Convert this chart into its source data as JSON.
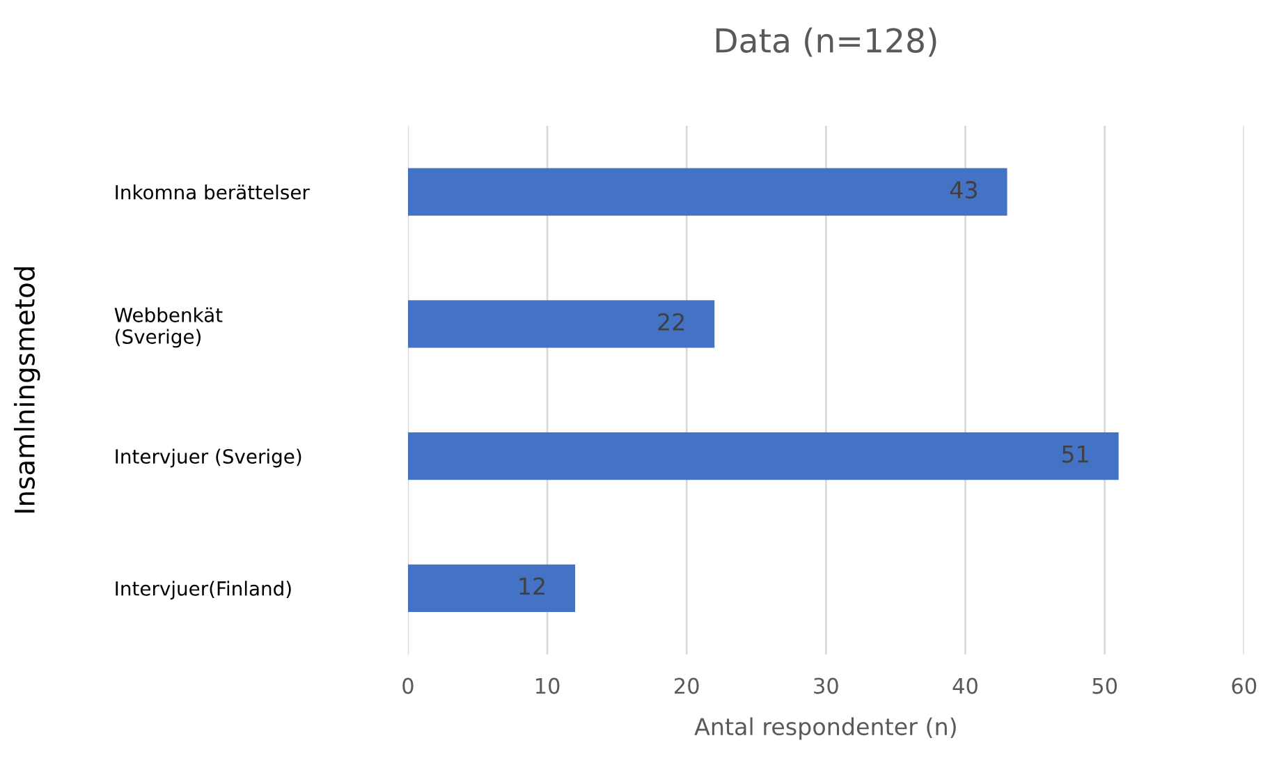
{
  "chart_data": {
    "type": "bar",
    "orientation": "horizontal",
    "title": "Data (n=128)",
    "xlabel": "Antal respondenter (n)",
    "ylabel": "Insamlningsmetod",
    "categories": [
      "Inkomna berättelser",
      "Webbenkät\n(Sverige)",
      "Intervjuer (Sverige)",
      "Intervjuer(Finland)"
    ],
    "values": [
      43,
      22,
      51,
      12
    ],
    "color": "#4472c4",
    "xlim": [
      0,
      60
    ],
    "xticks": [
      0,
      10,
      20,
      30,
      40,
      50,
      60
    ],
    "grid": "x",
    "data_labels": true
  }
}
